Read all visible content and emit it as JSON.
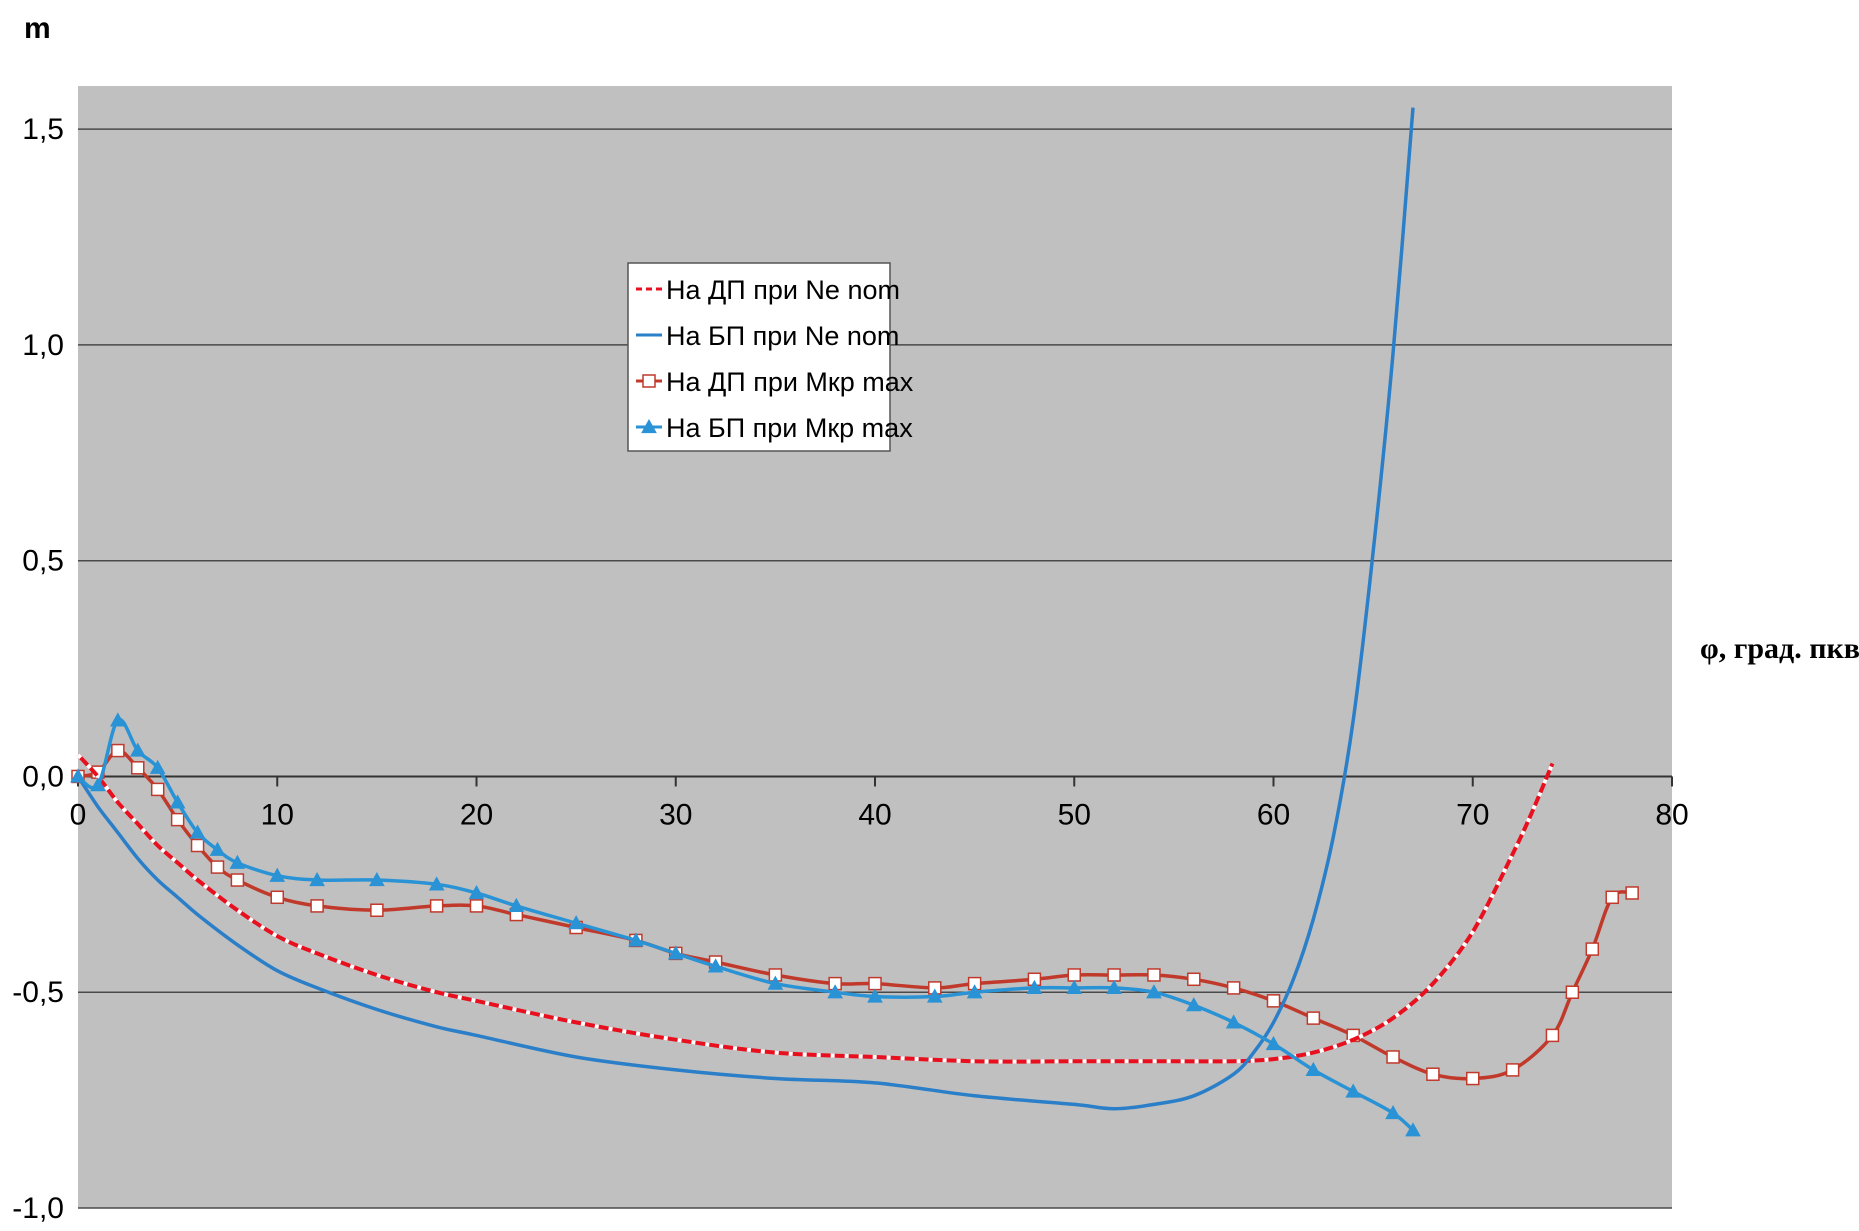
{
  "chart_data": {
    "type": "line",
    "title": "",
    "ylabel": "m",
    "xlabel": "φ, град. пкв",
    "xlim": [
      0,
      80
    ],
    "ylim": [
      -1.0,
      1.6
    ],
    "x_ticks": [
      0,
      10,
      20,
      30,
      40,
      50,
      60,
      70,
      80
    ],
    "x_tick_labels": [
      "0",
      "10",
      "20",
      "30",
      "40",
      "50",
      "60",
      "70",
      "80"
    ],
    "y_ticks": [
      -1.0,
      -0.5,
      0.0,
      0.5,
      1.0,
      1.5
    ],
    "y_tick_labels": [
      "-1,0",
      "-0,5",
      "0,0",
      "0,5",
      "1,0",
      "1,5"
    ],
    "grid": "horizontal",
    "plot_background": "#c0c0c0",
    "legend_position": "inside-upper-center",
    "series": [
      {
        "name": "На ДП при Ne nom",
        "color": "#e8101e",
        "style": "dashed",
        "marker": "none",
        "x": [
          0,
          1,
          2,
          3,
          4,
          5,
          6,
          8,
          10,
          12,
          15,
          18,
          20,
          25,
          30,
          35,
          40,
          45,
          50,
          55,
          58,
          60,
          62,
          64,
          66,
          68,
          70,
          72,
          73,
          74
        ],
        "y": [
          0.05,
          0.0,
          -0.06,
          -0.11,
          -0.16,
          -0.2,
          -0.24,
          -0.31,
          -0.37,
          -0.41,
          -0.46,
          -0.5,
          -0.52,
          -0.57,
          -0.61,
          -0.64,
          -0.65,
          -0.66,
          -0.66,
          -0.66,
          -0.66,
          -0.655,
          -0.64,
          -0.61,
          -0.56,
          -0.48,
          -0.36,
          -0.18,
          -0.08,
          0.03
        ]
      },
      {
        "name": "На БП при Ne nom",
        "color": "#2a7fc8",
        "style": "solid",
        "marker": "none",
        "x": [
          0,
          1,
          2,
          3,
          4,
          5,
          6,
          8,
          10,
          12,
          15,
          18,
          20,
          25,
          30,
          35,
          40,
          45,
          50,
          52,
          54,
          56,
          58,
          59,
          60,
          61,
          62,
          63,
          64,
          65,
          66,
          67
        ],
        "y": [
          0.0,
          -0.07,
          -0.13,
          -0.19,
          -0.24,
          -0.28,
          -0.32,
          -0.39,
          -0.45,
          -0.49,
          -0.54,
          -0.58,
          -0.6,
          -0.65,
          -0.68,
          -0.7,
          -0.71,
          -0.74,
          -0.76,
          -0.77,
          -0.76,
          -0.74,
          -0.69,
          -0.64,
          -0.57,
          -0.47,
          -0.33,
          -0.14,
          0.13,
          0.52,
          0.98,
          1.55
        ]
      },
      {
        "name": "На ДП при Мкр max",
        "color": "#c0392b",
        "style": "solid",
        "marker": "square-hollow",
        "x": [
          0,
          1,
          2,
          3,
          4,
          5,
          6,
          7,
          8,
          10,
          12,
          15,
          18,
          20,
          22,
          25,
          28,
          30,
          32,
          35,
          38,
          40,
          43,
          45,
          48,
          50,
          52,
          54,
          56,
          58,
          60,
          62,
          64,
          66,
          68,
          70,
          72,
          74,
          75,
          76,
          77,
          78
        ],
        "y": [
          0.0,
          0.01,
          0.06,
          0.02,
          -0.03,
          -0.1,
          -0.16,
          -0.21,
          -0.24,
          -0.28,
          -0.3,
          -0.31,
          -0.3,
          -0.3,
          -0.32,
          -0.35,
          -0.38,
          -0.41,
          -0.43,
          -0.46,
          -0.48,
          -0.48,
          -0.49,
          -0.48,
          -0.47,
          -0.46,
          -0.46,
          -0.46,
          -0.47,
          -0.49,
          -0.52,
          -0.56,
          -0.6,
          -0.65,
          -0.69,
          -0.7,
          -0.68,
          -0.6,
          -0.5,
          -0.4,
          -0.28,
          -0.27
        ]
      },
      {
        "name": "На БП при Мкр max",
        "color": "#2a93d5",
        "style": "solid",
        "marker": "triangle",
        "x": [
          0,
          1,
          2,
          3,
          4,
          5,
          6,
          7,
          8,
          10,
          12,
          15,
          18,
          20,
          22,
          25,
          28,
          30,
          32,
          35,
          38,
          40,
          43,
          45,
          48,
          50,
          52,
          54,
          56,
          58,
          60,
          62,
          64,
          66,
          67
        ],
        "y": [
          0.0,
          -0.02,
          0.13,
          0.06,
          0.02,
          -0.06,
          -0.13,
          -0.17,
          -0.2,
          -0.23,
          -0.24,
          -0.24,
          -0.25,
          -0.27,
          -0.3,
          -0.34,
          -0.38,
          -0.41,
          -0.44,
          -0.48,
          -0.5,
          -0.51,
          -0.51,
          -0.5,
          -0.49,
          -0.49,
          -0.49,
          -0.5,
          -0.53,
          -0.57,
          -0.62,
          -0.68,
          -0.73,
          -0.78,
          -0.82
        ]
      }
    ]
  }
}
